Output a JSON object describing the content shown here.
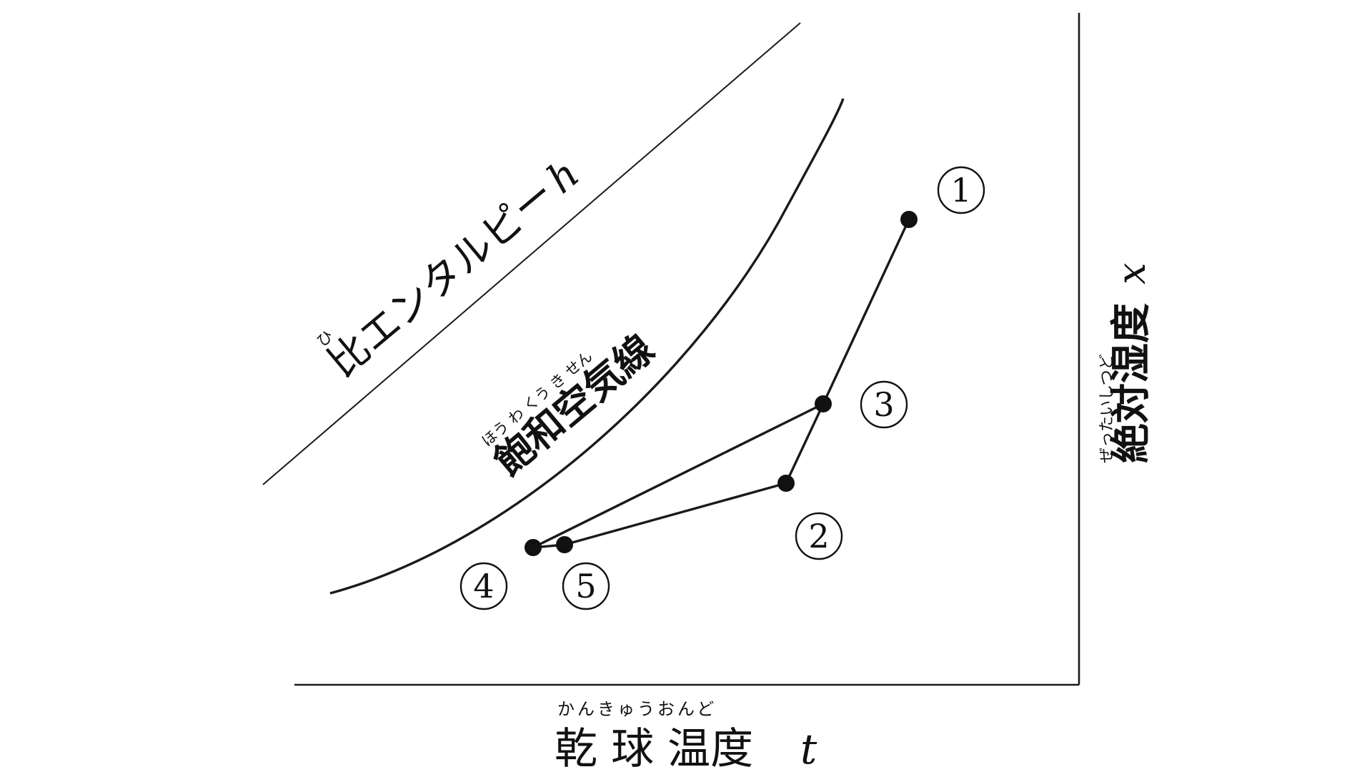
{
  "labels": {
    "enthalpy": {
      "text": "比エンタルピー",
      "symbol": "h",
      "ruby": "ひ"
    },
    "saturation": {
      "text": "飽和空気線",
      "ruby": "ほう わ くう き せん"
    },
    "absolute_humidity": {
      "text": "絶対湿度",
      "symbol": "x",
      "ruby": "ぜったいしつど"
    },
    "dry_bulb": {
      "text": "乾 球 温度",
      "symbol": "t",
      "ruby": "かんきゅうおんど"
    }
  },
  "points": [
    {
      "id": "1",
      "mark": "①"
    },
    {
      "id": "2",
      "mark": "②"
    },
    {
      "id": "3",
      "mark": "③"
    },
    {
      "id": "4",
      "mark": "④"
    },
    {
      "id": "5",
      "mark": "⑤"
    }
  ],
  "style": {
    "ink": "#111111",
    "background": "#ffffff"
  }
}
